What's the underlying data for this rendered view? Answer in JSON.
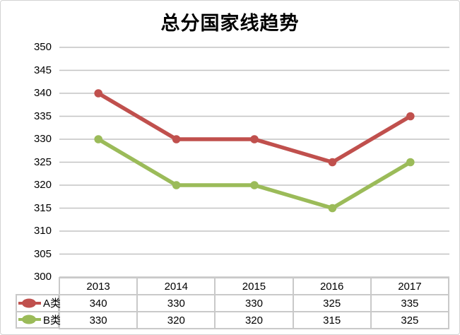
{
  "chart_data": {
    "type": "line",
    "title": "总分国家线趋势",
    "categories": [
      "2013",
      "2014",
      "2015",
      "2016",
      "2017"
    ],
    "series": [
      {
        "name": "A类",
        "color": "#C0504D",
        "values": [
          340,
          330,
          330,
          325,
          335
        ]
      },
      {
        "name": "B类",
        "color": "#9BBB59",
        "values": [
          330,
          320,
          320,
          315,
          325
        ]
      }
    ],
    "xlabel": "",
    "ylabel": "",
    "ylim": [
      300,
      350
    ],
    "yticks": [
      350,
      345,
      340,
      335,
      330,
      325,
      320,
      315,
      310,
      305,
      300
    ],
    "grid": true,
    "legend_position": "table-left",
    "marker": "circle"
  },
  "table": {
    "header": [
      "2013",
      "2014",
      "2015",
      "2016",
      "2017"
    ],
    "rows": [
      {
        "label": "A类",
        "values": [
          "340",
          "330",
          "330",
          "325",
          "335"
        ]
      },
      {
        "label": "B类",
        "values": [
          "330",
          "320",
          "320",
          "315",
          "325"
        ]
      }
    ]
  },
  "colors": {
    "series_a": "#C0504D",
    "series_b": "#9BBB59",
    "gridline": "#C3C3C3",
    "table_border": "#C9C9C9",
    "outer_border": "#D3D3D3",
    "background": "#FFFFFF",
    "text": "#000000"
  }
}
